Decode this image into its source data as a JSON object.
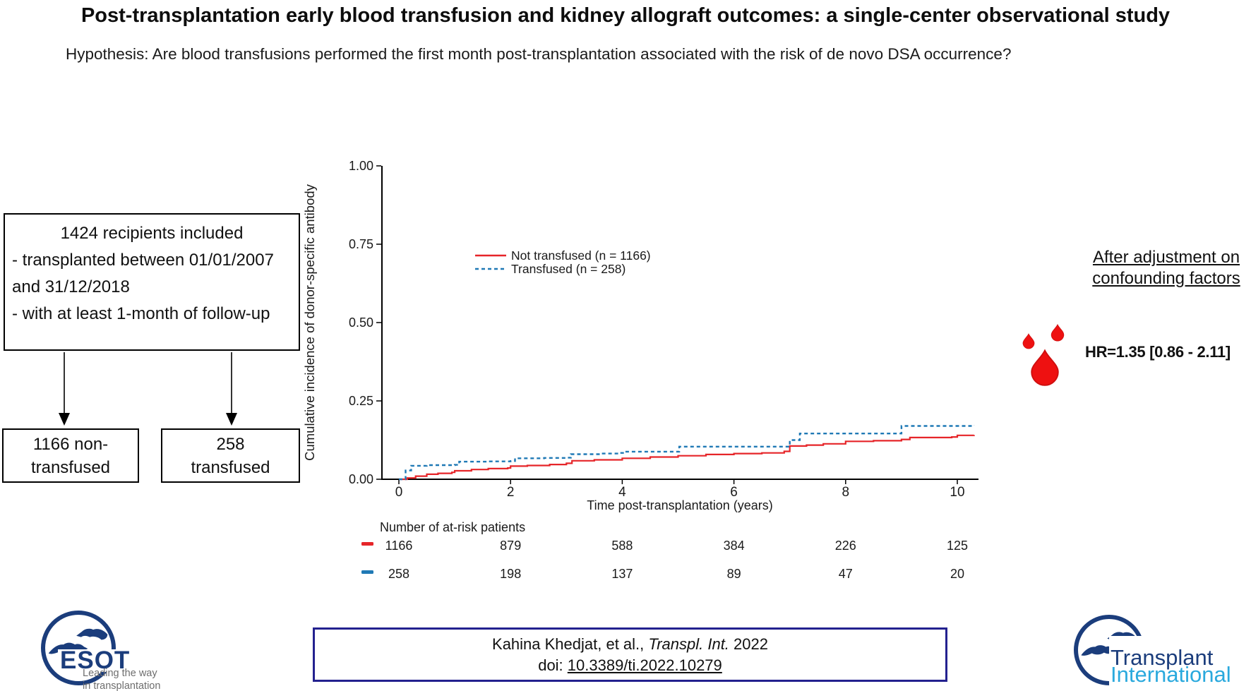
{
  "page": {
    "title": "Post-transplantation early blood transfusion and kidney allograft outcomes: a single-center observational study",
    "hypothesis": "Hypothesis: Are blood transfusions performed the first month post-transplantation associated with the risk of de novo DSA occurrence?"
  },
  "flowchart": {
    "main_box_title": "1424 recipients included",
    "main_box_lines": [
      "- transplanted between 01/01/2007 and 31/12/2018",
      "- with at least 1-month of follow-up"
    ],
    "left_box_lines": [
      "1166 non-",
      "transfused"
    ],
    "right_box_lines": [
      "258",
      "transfused"
    ]
  },
  "chart_data": {
    "type": "line",
    "subtype": "cumulative-incidence-step",
    "title": "",
    "xlabel": "Time post-transplantation (years)",
    "ylabel": "Cumulative incidence of donor-specific antibody",
    "xlim": [
      0,
      10.3
    ],
    "ylim": [
      0,
      1.0
    ],
    "x_ticks": [
      0,
      2,
      4,
      6,
      8,
      10
    ],
    "y_ticks": [
      "0.00",
      "0.25",
      "0.50",
      "0.75",
      "1.00"
    ],
    "grid": false,
    "legend_position": "upper-left-inside",
    "legend": [
      {
        "label": "Not transfused (n = 1166)",
        "color": "#e62529",
        "dash": "solid"
      },
      {
        "label": "Transfused (n = 258)",
        "color": "#1f79b5",
        "dash": "dashed"
      }
    ],
    "series": [
      {
        "name": "Not transfused",
        "color": "#e62529",
        "style": "solid",
        "points": [
          [
            0,
            0
          ],
          [
            0.15,
            0.004
          ],
          [
            0.3,
            0.01
          ],
          [
            0.5,
            0.016
          ],
          [
            0.7,
            0.019
          ],
          [
            0.95,
            0.022
          ],
          [
            1.0,
            0.027
          ],
          [
            1.3,
            0.031
          ],
          [
            1.6,
            0.034
          ],
          [
            1.95,
            0.036
          ],
          [
            2.0,
            0.042
          ],
          [
            2.3,
            0.044
          ],
          [
            2.7,
            0.047
          ],
          [
            3.0,
            0.051
          ],
          [
            3.1,
            0.059
          ],
          [
            3.5,
            0.062
          ],
          [
            4.0,
            0.067
          ],
          [
            4.5,
            0.071
          ],
          [
            5.0,
            0.075
          ],
          [
            5.5,
            0.079
          ],
          [
            6.0,
            0.082
          ],
          [
            6.5,
            0.084
          ],
          [
            6.9,
            0.089
          ],
          [
            7.0,
            0.106
          ],
          [
            7.3,
            0.109
          ],
          [
            7.6,
            0.113
          ],
          [
            8.0,
            0.121
          ],
          [
            8.5,
            0.123
          ],
          [
            9.0,
            0.127
          ],
          [
            9.15,
            0.133
          ],
          [
            9.9,
            0.135
          ],
          [
            10.0,
            0.14
          ],
          [
            10.3,
            0.141
          ]
        ]
      },
      {
        "name": "Transfused",
        "color": "#1f79b5",
        "style": "dashed",
        "points": [
          [
            0,
            0
          ],
          [
            0.12,
            0.028
          ],
          [
            0.22,
            0.043
          ],
          [
            0.5,
            0.045
          ],
          [
            1.0,
            0.046
          ],
          [
            1.08,
            0.056
          ],
          [
            1.6,
            0.057
          ],
          [
            2.0,
            0.058
          ],
          [
            2.08,
            0.067
          ],
          [
            2.6,
            0.068
          ],
          [
            3.0,
            0.069
          ],
          [
            3.08,
            0.08
          ],
          [
            3.6,
            0.082
          ],
          [
            3.95,
            0.084
          ],
          [
            4.05,
            0.088
          ],
          [
            4.95,
            0.088
          ],
          [
            5.02,
            0.104
          ],
          [
            6.9,
            0.104
          ],
          [
            7.0,
            0.125
          ],
          [
            7.18,
            0.146
          ],
          [
            8.9,
            0.146
          ],
          [
            9.0,
            0.17
          ],
          [
            10.3,
            0.172
          ]
        ]
      }
    ],
    "at_risk": {
      "header": "Number of at-risk patients",
      "years": [
        0,
        2,
        4,
        6,
        8,
        10
      ],
      "rows": [
        {
          "name": "Not transfused",
          "color": "#e62529",
          "values": [
            1166,
            879,
            588,
            384,
            226,
            125
          ]
        },
        {
          "name": "Transfused",
          "color": "#1f79b5",
          "values": [
            258,
            198,
            137,
            89,
            47,
            20
          ]
        }
      ]
    }
  },
  "result_panel": {
    "heading_line1": "After adjustment on",
    "heading_line2": "confounding factors",
    "hr_text": "HR=1.35 [0.86 - 2.11]"
  },
  "citation": {
    "authors_prefix": "Kahina Khedjat, et al., ",
    "journal_italic": "Transpl. Int.",
    "year_suffix": " 2022",
    "doi_prefix": "doi: ",
    "doi_link": "10.3389/ti.2022.10279"
  },
  "logos": {
    "esot": {
      "acronym": "ESOT",
      "tagline_line1": "Leading the way",
      "tagline_line2": "in transplantation"
    },
    "transplant_international": {
      "line1": "Transplant",
      "line2": "International"
    }
  },
  "colors": {
    "accent_red": "#e62529",
    "accent_blue": "#1f79b5",
    "logo_navy": "#1b3d7c",
    "logo_cyan": "#2aa9dd",
    "citation_border": "#23218f",
    "tagline_gray": "#6e6e6e",
    "drop_red": "#ee1111"
  }
}
